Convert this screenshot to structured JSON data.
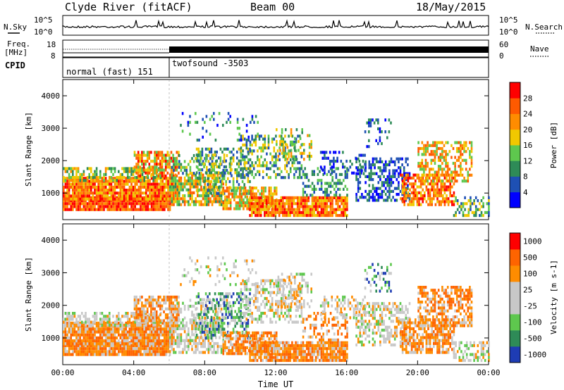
{
  "header": {
    "station": "Clyde River (fitACF)",
    "beam": "Beam 00",
    "date": "18/May/2015"
  },
  "panels": {
    "nsky_label": "N.Sky",
    "nsearch_label": "N.Search",
    "freq_label_1": "Freq.",
    "freq_label_2": "[MHz]",
    "nave_label": "Nave",
    "cpid_label": "CPID",
    "noise_ticks": [
      "10^5",
      "10^0"
    ],
    "freq_ticks": [
      "8",
      "18"
    ],
    "nave_ticks": [
      "60",
      "0"
    ],
    "cpid_segments": [
      {
        "label": "normal (fast) 151",
        "start": "00:00",
        "end": "06:00"
      },
      {
        "label": "twofsound -3503",
        "start": "06:00",
        "end": "24:00"
      }
    ]
  },
  "colors": {
    "power_scale": [
      "#0000ff",
      "#1e50b4",
      "#2e8b57",
      "#5ec84e",
      "#f0c800",
      "#ff8c00",
      "#ff5a00",
      "#ff0000"
    ],
    "velocity_scale": [
      "#1e3cb4",
      "#2e8b57",
      "#5ec84e",
      "#c8c8c8",
      "#c8c8c8",
      "#ff8c00",
      "#ff6400",
      "#ff0000"
    ]
  },
  "chart_data": [
    {
      "type": "heatmap",
      "title": "",
      "xlabel": "",
      "ylabel": "Slant Range [km]",
      "xlim": [
        "00:00",
        "24:00"
      ],
      "ylim": [
        180,
        4500
      ],
      "x_ticks": [
        "00:00",
        "04:00",
        "08:00",
        "12:00",
        "16:00",
        "20:00",
        "00:00"
      ],
      "y_ticks": [
        1000,
        2000,
        3000,
        4000
      ],
      "colorbar": {
        "label": "Power [dB]",
        "ticks": [
          4,
          8,
          12,
          16,
          20,
          24,
          28
        ],
        "range": [
          0,
          32
        ]
      },
      "grid": false
    },
    {
      "type": "heatmap",
      "title": "",
      "xlabel": "Time UT",
      "ylabel": "Slant Range [km]",
      "xlim": [
        "00:00",
        "24:00"
      ],
      "ylim": [
        180,
        4500
      ],
      "x_ticks": [
        "00:00",
        "04:00",
        "08:00",
        "12:00",
        "16:00",
        "20:00",
        "00:00"
      ],
      "y_ticks": [
        1000,
        2000,
        3000,
        4000
      ],
      "colorbar": {
        "label": "Velocity [m s-1]",
        "ticks": [
          "1000",
          "500",
          "100",
          "25",
          "-25",
          "-100",
          "-500",
          "-1000"
        ]
      },
      "grid": false
    }
  ]
}
